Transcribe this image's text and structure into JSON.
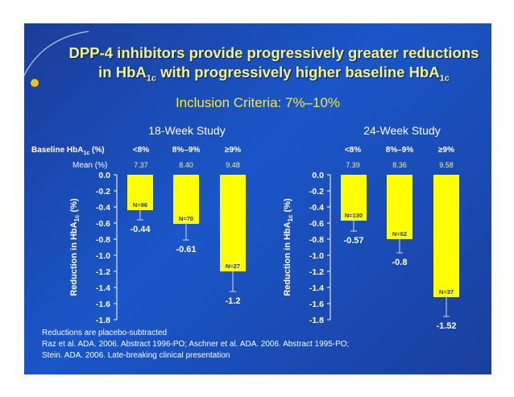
{
  "title_line1": "DPP-4 inhibitors provide progressively greater reductions",
  "title_line2_a": "in HbA",
  "title_line2_sub1": "1c",
  "title_line2_b": " with progressively higher baseline HbA",
  "title_line2_sub2": "1c",
  "subtitle": "Inclusion Criteria: 7%–10%",
  "baseline_label_a": "Baseline HbA",
  "baseline_label_sub": "1c",
  "baseline_label_b": " (%)",
  "mean_label": "Mean (%)",
  "footnotes": [
    "Reductions are placebo-subtracted",
    "Raz et al. ADA. 2006. Abstract 1996-PO; Aschner et al. ADA. 2006. Abstract 1995-PO;",
    "Stein. ADA. 2006. Late-breaking clinical presentation"
  ],
  "colors": {
    "bar": "#ffff00",
    "title": "#f5f28a",
    "subtitle": "#f5e63a",
    "background": "#1a4fc0",
    "accent_dot": "#f5c400"
  },
  "chart_data": [
    {
      "type": "bar",
      "title": "18-Week Study",
      "ylabel": "Reduction in HbA1c (%)",
      "ylabel_main": "Reduction in HbA",
      "ylabel_sub": "1c",
      "ylabel_tail": " (%)",
      "ylim": [
        -1.8,
        0.0
      ],
      "yticks": [
        "0.0",
        "-0.2",
        "-0.4",
        "-0.6",
        "-0.8",
        "-1.0",
        "-1.2",
        "-1.4",
        "-1.6",
        "-1.8"
      ],
      "categories": [
        "<8%",
        "8%–9%",
        "≥9%"
      ],
      "baseline_mean": [
        "7.37",
        "8.40",
        "9.48"
      ],
      "values": [
        -0.44,
        -0.61,
        -1.2
      ],
      "value_labels": [
        "-0.44",
        "-0.61",
        "-1.2"
      ],
      "n_labels": [
        "N=96",
        "N=70",
        "N=27"
      ],
      "error_low": [
        -0.56,
        -0.81,
        -1.45
      ],
      "grid": false
    },
    {
      "type": "bar",
      "title": "24-Week Study",
      "ylabel": "Reduction in HbA1c (%)",
      "ylabel_main": "Reduction in HbA",
      "ylabel_sub": "1c",
      "ylabel_tail": " (%)",
      "ylim": [
        -1.8,
        0.0
      ],
      "yticks": [
        "0.0",
        "-0.2",
        "-0.4",
        "-0.6",
        "-0.8",
        "-1.0",
        "-1.2",
        "-1.4",
        "-1.6",
        "-1.8"
      ],
      "categories": [
        "<8%",
        "8%–9%",
        "≥9%"
      ],
      "baseline_mean": [
        "7.39",
        "8.36",
        "9.58"
      ],
      "values": [
        -0.57,
        -0.8,
        -1.52
      ],
      "value_labels": [
        "-0.57",
        "-0.8",
        "-1.52"
      ],
      "n_labels": [
        "N=130",
        "N=62",
        "N=37"
      ],
      "error_low": [
        -0.7,
        -0.97,
        -1.76
      ],
      "grid": false
    }
  ]
}
